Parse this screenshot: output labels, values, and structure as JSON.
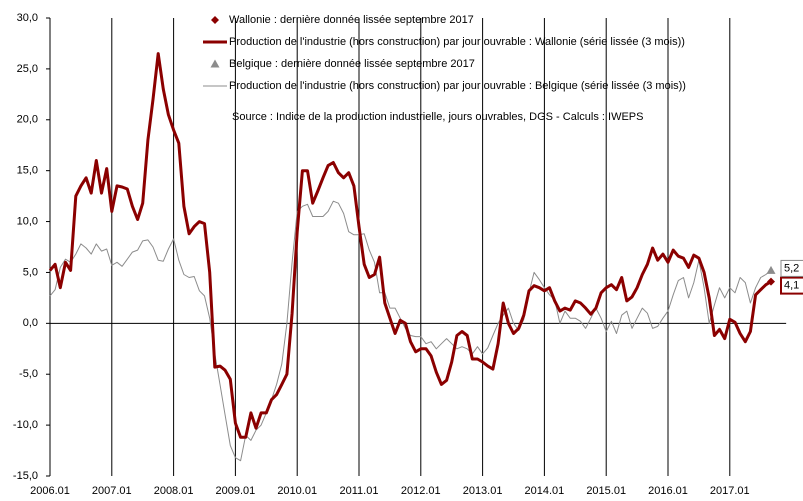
{
  "chart_data": {
    "type": "line",
    "annotations": [
      "Source : Indice de la production industrielle, jours ouvrables, DGS - Calculs : IWEPS"
    ],
    "categories": [
      "2006.01",
      null,
      null,
      null,
      null,
      null,
      null,
      null,
      null,
      null,
      null,
      null,
      "2007.01",
      null,
      null,
      null,
      null,
      null,
      null,
      null,
      null,
      null,
      null,
      null,
      "2008.01",
      null,
      null,
      null,
      null,
      null,
      null,
      null,
      null,
      null,
      null,
      null,
      "2009.01",
      null,
      null,
      null,
      null,
      null,
      null,
      null,
      null,
      null,
      null,
      null,
      "2010.01",
      null,
      null,
      null,
      null,
      null,
      null,
      null,
      null,
      null,
      null,
      null,
      "2011.01",
      null,
      null,
      null,
      null,
      null,
      null,
      null,
      null,
      null,
      null,
      null,
      "2012.01",
      null,
      null,
      null,
      null,
      null,
      null,
      null,
      null,
      null,
      null,
      null,
      "2013.01",
      null,
      null,
      null,
      null,
      null,
      null,
      null,
      null,
      null,
      null,
      null,
      "2014.01",
      null,
      null,
      null,
      null,
      null,
      null,
      null,
      null,
      null,
      null,
      null,
      "2015.01",
      null,
      null,
      null,
      null,
      null,
      null,
      null,
      null,
      null,
      null,
      null,
      "2016.01",
      null,
      null,
      null,
      null,
      null,
      null,
      null,
      null,
      null,
      null,
      null,
      "2017.01",
      null,
      null,
      null,
      null,
      null,
      null,
      null,
      null
    ],
    "series": [
      {
        "name": "Production de l'industrie (hors construction) par jour ouvrable : Wallonie (série lissée (3 mois))",
        "color": "#8b0000",
        "width": 3,
        "last_marker": {
          "name": "Wallonie : dernière donnée lissée septembre 2017",
          "shape": "diamond",
          "value_label": "4,1"
        },
        "values": [
          5.2,
          5.8,
          3.5,
          6,
          5.2,
          12.5,
          13.5,
          14.3,
          12.8,
          16,
          12.8,
          15.2,
          11,
          13.5,
          13.4,
          13.2,
          11.5,
          10.2,
          11.8,
          18,
          22,
          26.5,
          23,
          20.5,
          19,
          17.7,
          11.5,
          8.8,
          9.5,
          10,
          9.8,
          5,
          -4.3,
          -4.2,
          -4.6,
          -5.5,
          -9.8,
          -11.2,
          -11.2,
          -8.8,
          -10.3,
          -8.8,
          -8.8,
          -7.5,
          -7,
          -6,
          -5,
          1,
          9,
          15,
          15,
          11.8,
          13,
          14.3,
          15.5,
          15.8,
          14.8,
          14.3,
          14.8,
          13.5,
          9.5,
          5.8,
          4.5,
          4.8,
          6.5,
          2,
          0.5,
          -1,
          0.3,
          0,
          -1.8,
          -2.8,
          -2.5,
          -2.5,
          -3.2,
          -4.8,
          -6,
          -5.6,
          -3.8,
          -1.2,
          -0.8,
          -1.2,
          -3.5,
          -3.5,
          -3.8,
          -4.2,
          -4.5,
          -2,
          2,
          0,
          -1,
          -0.5,
          0.8,
          3.2,
          3.7,
          3.5,
          3.2,
          3.5,
          2.2,
          1.2,
          1.5,
          1.3,
          2.2,
          2,
          1.5,
          0.9,
          1.5,
          3,
          3.5,
          3.8,
          3.3,
          4.5,
          2.2,
          2.6,
          3.5,
          4.8,
          5.8,
          7.4,
          6.2,
          6.8,
          6,
          7.2,
          6.6,
          6.4,
          5.5,
          6.7,
          6.4,
          5,
          2.5,
          -1.2,
          -0.6,
          -1.5,
          0.4,
          0.1,
          -1,
          -1.8,
          -0.8,
          2.8,
          3.3,
          3.8,
          4.1
        ]
      },
      {
        "name": "Production de l'industrie (hors construction) par jour ouvrable : Belgique (série lissée (3 mois))",
        "color": "#8c8c8c",
        "width": 1,
        "last_marker": {
          "name": "Belgique : dernière donnée lissée septembre 2017",
          "shape": "triangle",
          "value_label": "5,2"
        },
        "values": [
          2.7,
          3.3,
          5.5,
          6.3,
          6,
          6.8,
          7.8,
          7.4,
          6.8,
          7.8,
          7.1,
          7.3,
          5.7,
          6,
          5.6,
          6.3,
          7,
          7.2,
          8.1,
          8.2,
          7.5,
          6.2,
          6.1,
          7.3,
          8.3,
          6.2,
          4.8,
          4.5,
          4.6,
          3.2,
          2.7,
          0.5,
          -3,
          -6,
          -9,
          -12,
          -13.2,
          -13.5,
          -11,
          -11.5,
          -10.5,
          -10,
          -8.8,
          -7.5,
          -6,
          -4,
          0,
          6,
          11,
          11.5,
          11.7,
          10.5,
          10.5,
          10.5,
          11,
          12,
          11.8,
          10.8,
          9,
          8.7,
          8.7,
          8.8,
          7.2,
          6,
          3,
          3,
          1.5,
          1.5,
          0.5,
          -0.5,
          -1.2,
          -1.3,
          -1.3,
          -2,
          -1.8,
          -2.5,
          -2,
          -1.5,
          -2,
          -2.5,
          -2.3,
          -2.5,
          -3,
          -2.3,
          -3,
          -2.4,
          -1.2,
          0,
          0.8,
          1.5,
          0,
          -0.7,
          0.4,
          3,
          5,
          4.3,
          3.5,
          2.8,
          2.3,
          0,
          1.2,
          0.5,
          0.5,
          0.2,
          -0.5,
          0.5,
          1.5,
          0.5,
          -0.8,
          0.2,
          -1,
          0.8,
          1.2,
          -0.5,
          0.5,
          1.5,
          1,
          -0.5,
          -0.3,
          0.5,
          1.2,
          2.8,
          4.2,
          4.5,
          2.5,
          4,
          6.2,
          3.5,
          0,
          1.8,
          3.5,
          2.5,
          3.5,
          3,
          4.5,
          4,
          2,
          3.5,
          4.5,
          4.8,
          5.2
        ]
      }
    ],
    "ylim": [
      -15,
      30
    ],
    "yticks": [
      {
        "value": -15,
        "label": "-15,0"
      },
      {
        "value": -10,
        "label": "-10,0"
      },
      {
        "value": -5,
        "label": "-5,0"
      },
      {
        "value": 0,
        "label": "0,0"
      },
      {
        "value": 5,
        "label": "5,0"
      },
      {
        "value": 10,
        "label": "10,0"
      },
      {
        "value": 15,
        "label": "15,0"
      },
      {
        "value": 20,
        "label": "20,0"
      },
      {
        "value": 25,
        "label": "25,0"
      },
      {
        "value": 30,
        "label": "30,0"
      }
    ],
    "vertical_grid": true
  }
}
